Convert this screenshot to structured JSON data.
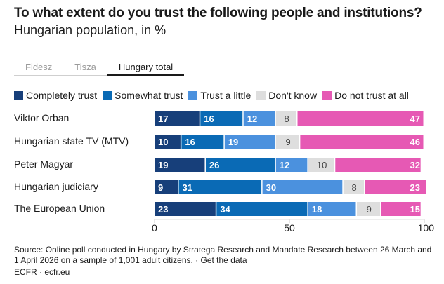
{
  "title": "To what extent do you trust the following people and institutions?",
  "subtitle": "Hungarian population, in %",
  "tabs": [
    {
      "label": "Fidesz",
      "active": false
    },
    {
      "label": "Tisza",
      "active": false
    },
    {
      "label": "Hungary total",
      "active": true
    }
  ],
  "colors": {
    "completely": "#173f7a",
    "somewhat": "#0a6ab5",
    "little": "#4b91de",
    "dontknow": "#dedede",
    "notatall": "#e659b4"
  },
  "chart_data": {
    "type": "bar",
    "orientation": "horizontal",
    "stacked": true,
    "categories": [
      "Viktor Orban",
      "Hungarian state TV (MTV)",
      "Peter Magyar",
      "Hungarian judiciary",
      "The European Union"
    ],
    "series": [
      {
        "name": "Completely trust",
        "key": "completely",
        "values": [
          17,
          10,
          19,
          9,
          23
        ]
      },
      {
        "name": "Somewhat trust",
        "key": "somewhat",
        "values": [
          16,
          16,
          26,
          31,
          34
        ]
      },
      {
        "name": "Trust a little",
        "key": "little",
        "values": [
          12,
          19,
          12,
          30,
          18
        ]
      },
      {
        "name": "Don't know",
        "key": "dontknow",
        "values": [
          8,
          9,
          10,
          8,
          9
        ]
      },
      {
        "name": "Do not trust at all",
        "key": "notatall",
        "values": [
          47,
          46,
          32,
          23,
          15
        ]
      }
    ],
    "xlim": [
      0,
      100
    ],
    "xticks": [
      "0",
      "50",
      "100"
    ],
    "xtick_values": [
      0,
      50,
      100
    ]
  },
  "source": {
    "text": "Source: Online poll conducted in Hungary by Stratega Research and Mandate Research between 26 March and 1 April 2026 on a sample of 1,001 adult citizens. · ",
    "link": "Get the data"
  },
  "footer": "ECFR · ecfr.eu"
}
